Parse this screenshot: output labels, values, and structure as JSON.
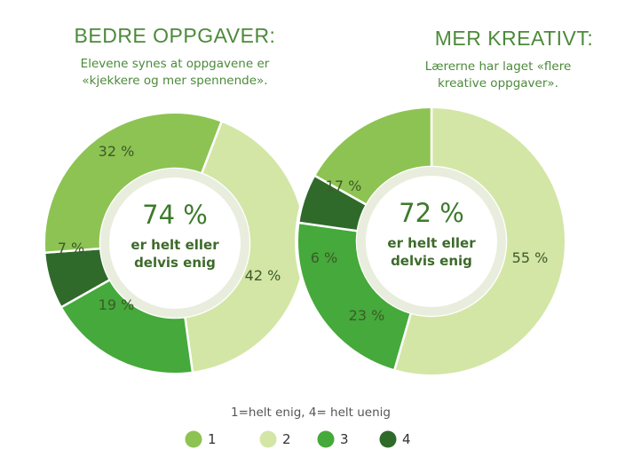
{
  "colors": {
    "title": "#4c8a3a",
    "inner_ring": "#e9eddd",
    "categories": {
      "1": "#8dc352",
      "2": "#d3e6a6",
      "3": "#45a93b",
      "4": "#2f6a2b"
    }
  },
  "legend": {
    "note": "1=helt enig, 4= helt uenig",
    "items": [
      {
        "key": "1",
        "label": "1"
      },
      {
        "key": "2",
        "label": "2"
      },
      {
        "key": "3",
        "label": "3"
      },
      {
        "key": "4",
        "label": "4"
      }
    ]
  },
  "chart_data": [
    {
      "type": "pie",
      "title": "BEDRE OPPGAVER:",
      "subtitle": [
        "Elevene synes at oppgavene er",
        "«kjekkere og mer spennende»."
      ],
      "center": {
        "value": "74 %",
        "text": [
          "er helt eller",
          "delvis enig"
        ]
      },
      "slices": [
        {
          "category": "2",
          "value": 42,
          "label": "42 %"
        },
        {
          "category": "3",
          "value": 19,
          "label": "19 %"
        },
        {
          "category": "4",
          "value": 7,
          "label": "7 %"
        },
        {
          "category": "1",
          "value": 32,
          "label": "32 %"
        }
      ]
    },
    {
      "type": "pie",
      "title": "MER KREATIVT:",
      "subtitle": [
        "Lærerne har laget «flere",
        "kreative oppgaver»."
      ],
      "center": {
        "value": "72 %",
        "text": [
          "er helt eller",
          "delvis enig"
        ]
      },
      "slices": [
        {
          "category": "2",
          "value": 55,
          "label": "55 %"
        },
        {
          "category": "3",
          "value": 23,
          "label": "23 %"
        },
        {
          "category": "4",
          "value": 6,
          "label": "6 %"
        },
        {
          "category": "1",
          "value": 17,
          "label": "17 %"
        }
      ]
    }
  ]
}
